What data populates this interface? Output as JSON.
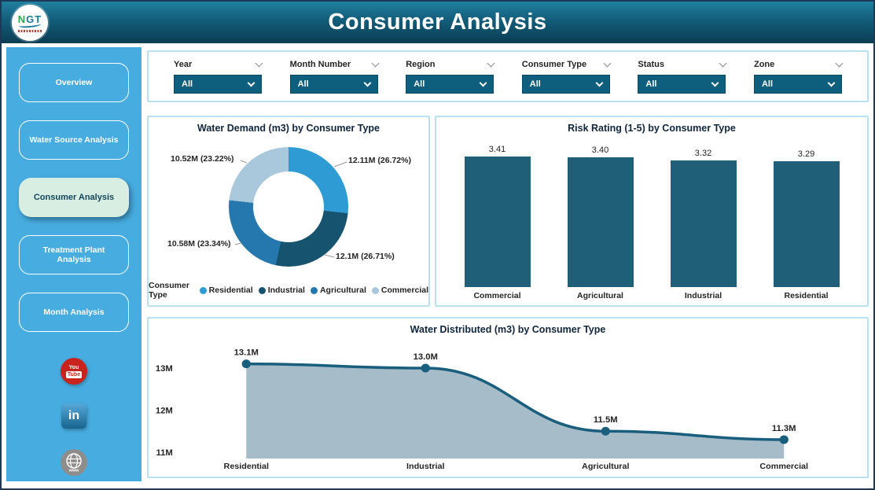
{
  "header": {
    "title": "Consumer Analysis",
    "logo": {
      "part1": "N",
      "part2": "GT"
    }
  },
  "sidebar": {
    "items": [
      {
        "label": "Overview",
        "active": false
      },
      {
        "label": "Water Source Analysis",
        "active": false
      },
      {
        "label": "Consumer Analysis",
        "active": true
      },
      {
        "label": "Treatment Plant Analysis",
        "active": false
      },
      {
        "label": "Month Analysis",
        "active": false
      }
    ],
    "social": {
      "youtube_top": "You",
      "youtube_bottom": "Tube",
      "linkedin": "in",
      "web": "www"
    }
  },
  "filters": [
    {
      "label": "Year",
      "value": "All"
    },
    {
      "label": "Month Number",
      "value": "All"
    },
    {
      "label": "Region",
      "value": "All"
    },
    {
      "label": "Consumer Type",
      "value": "All"
    },
    {
      "label": "Status",
      "value": "All"
    },
    {
      "label": "Zone",
      "value": "All"
    }
  ],
  "chart_data": [
    {
      "type": "pie",
      "subtype": "donut",
      "title": "Water Demand (m3) by Consumer Type",
      "legend_title": "Consumer Type",
      "legend_position": "bottom",
      "slices": [
        {
          "label": "Residential",
          "value": "12.11M",
          "pct": 26.72,
          "value_label": "12.11M (26.72%)",
          "color": "#2E9BD5"
        },
        {
          "label": "Industrial",
          "value": "12.1M",
          "pct": 26.71,
          "value_label": "12.1M (26.71%)",
          "color": "#16536F"
        },
        {
          "label": "Agricultural",
          "value": "10.58M",
          "pct": 23.34,
          "value_label": "10.58M (23.34%)",
          "color": "#2478AD"
        },
        {
          "label": "Commercial",
          "value": "10.52M",
          "pct": 23.22,
          "value_label": "10.52M (23.22%)",
          "color": "#A9C8DC"
        }
      ]
    },
    {
      "type": "bar",
      "title": "Risk Rating (1-5) by Consumer Type",
      "categories": [
        "Commercial",
        "Agricultural",
        "Industrial",
        "Residential"
      ],
      "values": [
        3.41,
        3.4,
        3.32,
        3.29
      ],
      "value_labels": [
        "3.41",
        "3.40",
        "3.32",
        "3.29"
      ],
      "ylim": [
        0,
        3.5
      ],
      "grid": false,
      "bar_color": "#1F5F78"
    },
    {
      "type": "area",
      "title": "Water Distributed (m3) by Consumer Type",
      "categories": [
        "Residential",
        "Industrial",
        "Agricultural",
        "Commercial"
      ],
      "values": [
        13.1,
        13.0,
        11.5,
        11.3
      ],
      "value_labels": [
        "13.1M",
        "13.0M",
        "11.5M",
        "11.3M"
      ],
      "ytick_labels": [
        "13M",
        "12M",
        "11M"
      ],
      "ytick_values": [
        13,
        12,
        11
      ],
      "ylim": [
        10.85,
        13.55
      ],
      "grid": false,
      "line_color": "#1A5E7E",
      "fill_color": "#A6BDC9",
      "marker_color": "#1A5E7E"
    }
  ],
  "colors": {
    "outer_border": "#1C3A57",
    "header_gradient_top": "#20809F",
    "header_gradient_bottom": "#0A3D52",
    "sidebar_bg": "#47ADE0",
    "active_item_bg": "#D8EEE3",
    "active_item_text": "#14465A",
    "dropdown_bg": "#0E5F7E",
    "panel_border": "#B9E2F0"
  }
}
